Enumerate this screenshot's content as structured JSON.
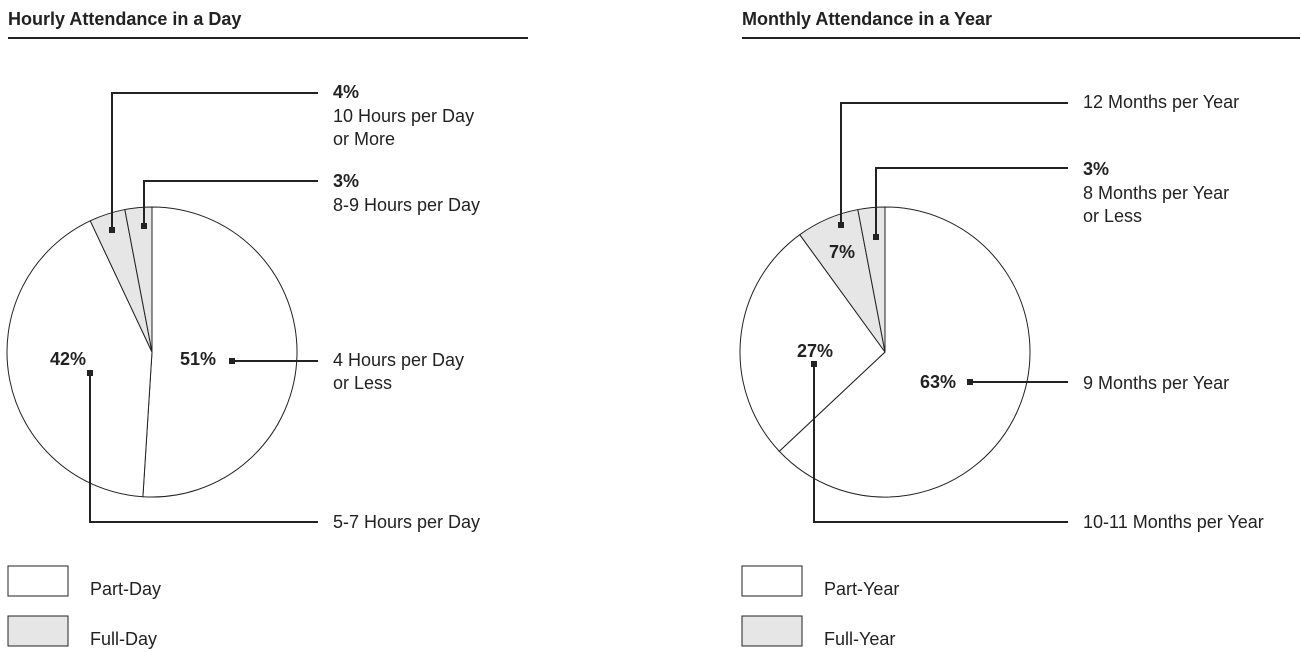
{
  "chart_data": [
    {
      "type": "pie",
      "title": "Hourly Attendance in a Day",
      "categories": [
        "4 Hours per Day\nor Less",
        "5-7 Hours per Day",
        "10 Hours per Day\nor More",
        "8-9 Hours per Day"
      ],
      "values": [
        51,
        42,
        4,
        3
      ],
      "value_labels": [
        "51%",
        "42%",
        "4%",
        "3%"
      ],
      "colors": [
        "#ffffff",
        "#ffffff",
        "#e6e6e6",
        "#e6e6e6"
      ],
      "legend": [
        {
          "name": "Part-Day",
          "color": "#ffffff"
        },
        {
          "name": "Full-Day",
          "color": "#e6e6e6"
        }
      ]
    },
    {
      "type": "pie",
      "title": "Monthly Attendance in a Year",
      "categories": [
        "9 Months per Year",
        "10-11 Months per Year",
        "12 Months per Year",
        "8 Months per Year\nor Less"
      ],
      "values": [
        63,
        27,
        7,
        3
      ],
      "value_labels": [
        "63%",
        "27%",
        "7%",
        "3%"
      ],
      "colors": [
        "#ffffff",
        "#ffffff",
        "#e6e6e6",
        "#e6e6e6"
      ],
      "legend": [
        {
          "name": "Part-Year",
          "color": "#ffffff"
        },
        {
          "name": "Full-Year",
          "color": "#e6e6e6"
        }
      ]
    }
  ]
}
